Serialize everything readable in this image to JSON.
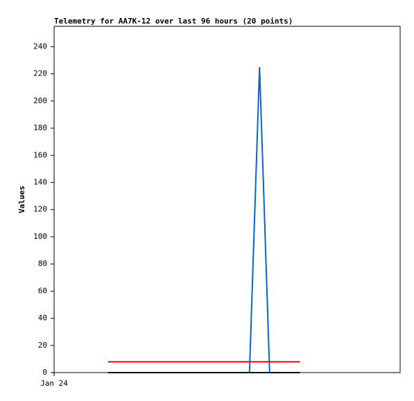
{
  "chart_data": {
    "type": "line",
    "title": "Telemetry for AA7K-12 over last 96 hours (20 points)",
    "y_label": "Values",
    "x": [
      15,
      17.8,
      20.6,
      23.4,
      26.2,
      29,
      31.8,
      34.6,
      37.4,
      40.2,
      43,
      45.8,
      48.6,
      51.4,
      54.2,
      57,
      59.8,
      62.6,
      65.4,
      68.2
    ],
    "xlim": [
      0,
      96
    ],
    "xticks": [
      {
        "value": 0,
        "label": "Jan 24"
      }
    ],
    "ylim": [
      0,
      255
    ],
    "yticks": [
      0,
      20,
      40,
      60,
      80,
      100,
      120,
      140,
      160,
      180,
      200,
      220,
      240
    ],
    "series": [
      {
        "color": "#0a64c8",
        "values": [
          0,
          0,
          0,
          0,
          0,
          0,
          0,
          0,
          0,
          0,
          0,
          0,
          0,
          0,
          0,
          225,
          0,
          0,
          0,
          0
        ]
      },
      {
        "color": "#ff0000",
        "values": [
          8,
          8,
          8,
          8,
          8,
          8,
          8,
          8,
          8,
          8,
          8,
          8,
          8,
          8,
          8,
          8,
          8,
          8,
          8,
          8
        ]
      },
      {
        "color": "#000000",
        "values": [
          0,
          0,
          0,
          0,
          0,
          0,
          0,
          0,
          0,
          0,
          0,
          0,
          0,
          0,
          0,
          0,
          0,
          0,
          0,
          0
        ]
      }
    ]
  }
}
